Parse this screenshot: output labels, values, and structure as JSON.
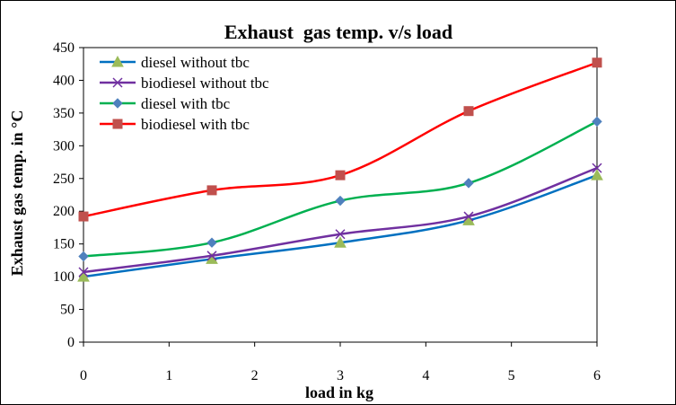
{
  "chart_data": {
    "type": "line",
    "title": "Exhaust  gas temp. v/s load",
    "xlabel": "load in kg",
    "ylabel": "Exhaust gas temp. in °C",
    "xlim": [
      0,
      6
    ],
    "ylim": [
      0,
      450
    ],
    "x_ticks": [
      "0",
      "1",
      "2",
      "3",
      "4",
      "5",
      "6"
    ],
    "y_ticks": [
      "0",
      "50",
      "100",
      "150",
      "200",
      "250",
      "300",
      "350",
      "400",
      "450"
    ],
    "grid": false,
    "legend_position": "top-left",
    "x": [
      0,
      1.5,
      3,
      4.5,
      6
    ],
    "series": [
      {
        "name": "diesel without tbc",
        "values": [
          100,
          127,
          152,
          186,
          255
        ],
        "color": "#0070C0",
        "marker": "triangle",
        "marker_color": "#9BBB59"
      },
      {
        "name": "biodiesel without tbc",
        "values": [
          107,
          132,
          165,
          192,
          266
        ],
        "color": "#7030A0",
        "marker": "x",
        "marker_color": "#7030A0"
      },
      {
        "name": "diesel with tbc",
        "values": [
          131,
          152,
          216,
          243,
          337
        ],
        "color": "#00B050",
        "marker": "diamond",
        "marker_color": "#4F81BD"
      },
      {
        "name": "biodiesel with tbc",
        "values": [
          192,
          232,
          255,
          353,
          427
        ],
        "color": "#FF0000",
        "marker": "square",
        "marker_color": "#C0504D"
      }
    ]
  }
}
